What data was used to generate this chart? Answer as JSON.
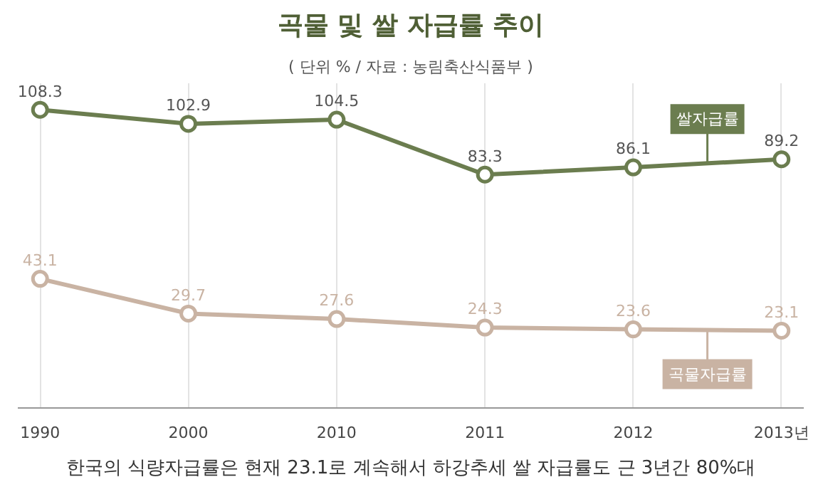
{
  "chart_data": {
    "type": "line",
    "title": "곡물 및 쌀 자급률 추이",
    "subtitle": "( 단위 % / 자료 : 농림축산식품부 )",
    "categories": [
      "1990",
      "2000",
      "2010",
      "2011",
      "2012",
      "2013년"
    ],
    "series": [
      {
        "name": "쌀자급률",
        "color": "#6b7d4f",
        "values": [
          108.3,
          102.9,
          104.5,
          83.3,
          86.1,
          89.2
        ]
      },
      {
        "name": "곡물자급률",
        "color": "#c9b3a3",
        "values": [
          43.1,
          29.7,
          27.6,
          24.3,
          23.6,
          23.1
        ]
      }
    ],
    "data_labels": true,
    "marker": "circle",
    "line_style": "solid",
    "grid": "x",
    "legend": false,
    "tick_labels": "x",
    "annotations": [
      "한국의 식량자급률은 현재 23.1로 계속해서 하강추세 쌀 자급률도 근 3년간 80%대"
    ]
  }
}
